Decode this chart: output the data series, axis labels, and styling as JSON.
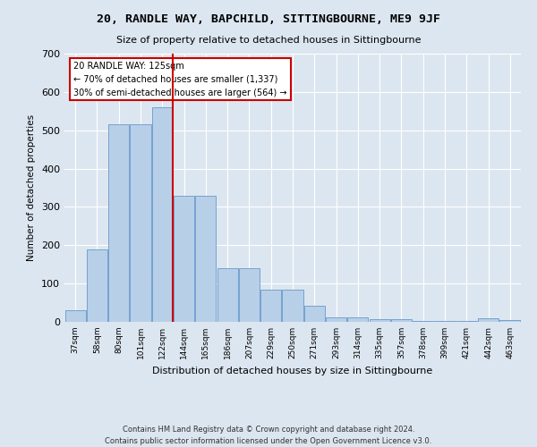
{
  "title": "20, RANDLE WAY, BAPCHILD, SITTINGBOURNE, ME9 9JF",
  "subtitle": "Size of property relative to detached houses in Sittingbourne",
  "xlabel": "Distribution of detached houses by size in Sittingbourne",
  "ylabel": "Number of detached properties",
  "categories": [
    "37sqm",
    "58sqm",
    "80sqm",
    "101sqm",
    "122sqm",
    "144sqm",
    "165sqm",
    "186sqm",
    "207sqm",
    "229sqm",
    "250sqm",
    "271sqm",
    "293sqm",
    "314sqm",
    "335sqm",
    "357sqm",
    "378sqm",
    "399sqm",
    "421sqm",
    "442sqm",
    "463sqm"
  ],
  "values": [
    30,
    190,
    515,
    515,
    560,
    328,
    328,
    140,
    140,
    85,
    85,
    42,
    12,
    12,
    8,
    8,
    3,
    3,
    3,
    10,
    5
  ],
  "bar_color": "#b8cfe8",
  "bar_edgecolor": "#6699cc",
  "vline_x": 4.5,
  "vline_color": "#cc0000",
  "annotation_text": "20 RANDLE WAY: 125sqm\n← 70% of detached houses are smaller (1,337)\n30% of semi-detached houses are larger (564) →",
  "annotation_box_edgecolor": "#cc0000",
  "footnote": "Contains HM Land Registry data © Crown copyright and database right 2024.\nContains public sector information licensed under the Open Government Licence v3.0.",
  "ylim": [
    0,
    700
  ],
  "fig_bg": "#dce6f0",
  "plot_bg": "#dce6f0"
}
